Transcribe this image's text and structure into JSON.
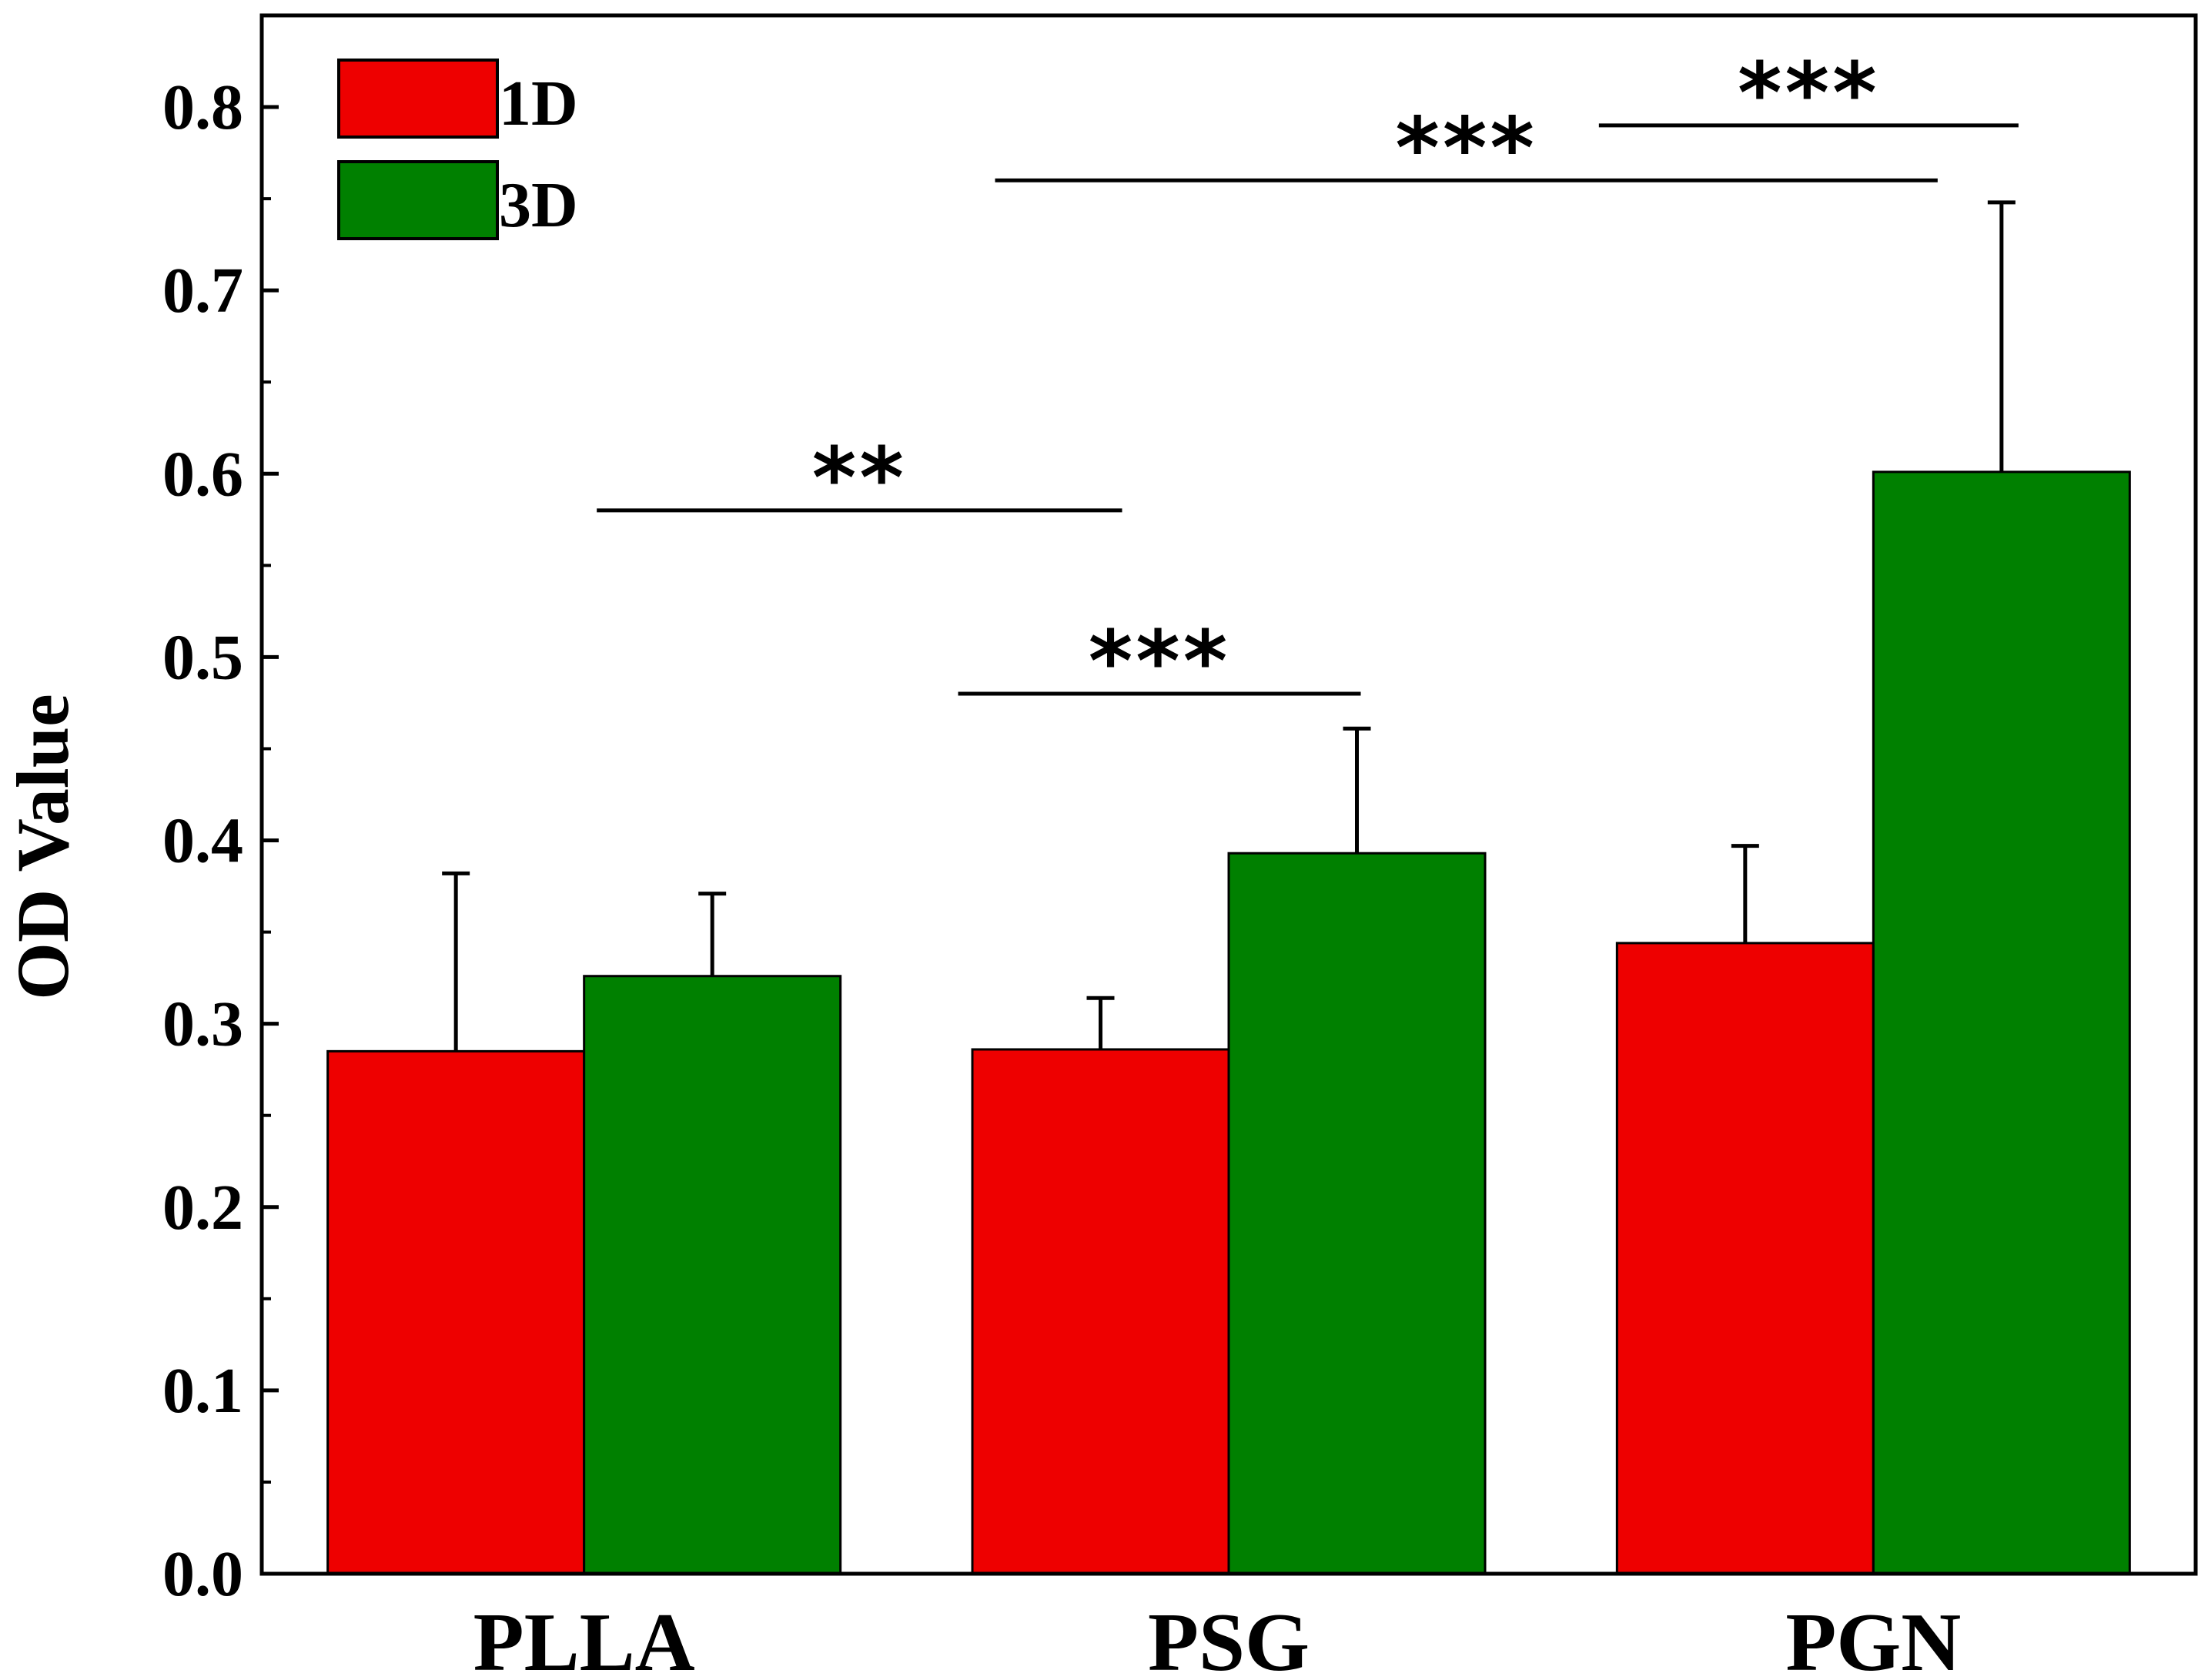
{
  "chart_data": {
    "type": "bar",
    "title": "",
    "xlabel": "",
    "ylabel": "OD Value",
    "ylim": [
      0,
      0.85
    ],
    "yticks": [
      "0.0",
      "0.1",
      "0.2",
      "0.3",
      "0.4",
      "0.5",
      "0.6",
      "0.7",
      "0.8"
    ],
    "categories": [
      "PLLA",
      "PSG",
      "PGN"
    ],
    "series": [
      {
        "name": "1D",
        "color": "#ee0000",
        "values": [
          0.285,
          0.286,
          0.344
        ],
        "errors": [
          0.097,
          0.028,
          0.053
        ]
      },
      {
        "name": "3D",
        "color": "#008000",
        "values": [
          0.326,
          0.393,
          0.601
        ],
        "errors": [
          0.045,
          0.068,
          0.147
        ]
      }
    ],
    "legend": {
      "placement": "top-left"
    },
    "significance": [
      {
        "label": "***",
        "from": "PSG 3D",
        "to": "PGN 1D",
        "y": 0.76
      },
      {
        "label": "***",
        "from": "PGN 1D",
        "to": "PGN 3D",
        "y": 0.79
      },
      {
        "label": "**",
        "from": "PLLA 3D",
        "to": "PSG 1D",
        "y": 0.58
      },
      {
        "label": "***",
        "from": "PSG 1D",
        "to": "PSG 3D",
        "y": 0.48
      }
    ]
  }
}
